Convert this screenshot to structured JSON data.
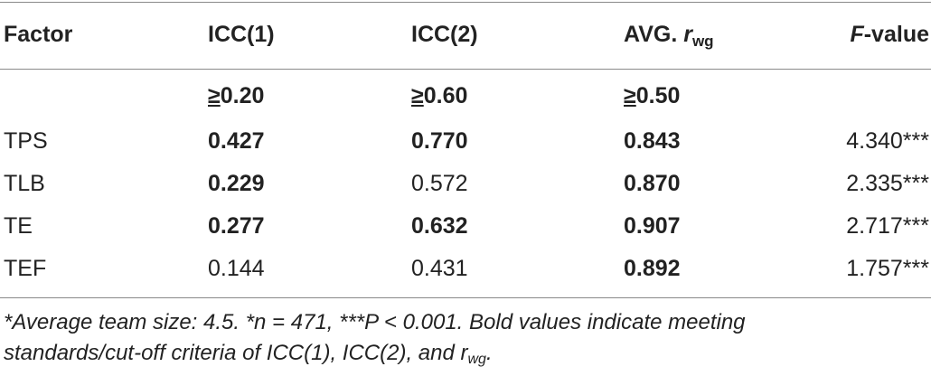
{
  "table": {
    "headers": {
      "factor": "Factor",
      "icc1": "ICC(1)",
      "icc2": "ICC(2)",
      "rwg_prefix": "AVG. ",
      "rwg_r": "r",
      "rwg_sub": "wg",
      "f_italic": "F",
      "f_rest": "-value"
    },
    "criteria": {
      "icc1_sym": "≥",
      "icc1_val": "0.20",
      "icc2_sym": "≥",
      "icc2_val": "0.60",
      "rwg_sym": "≥",
      "rwg_val": "0.50"
    },
    "rows": [
      {
        "factor": "TPS",
        "icc1": "0.427",
        "icc2": "0.770",
        "rwg": "0.843",
        "f": "4.340***",
        "icc1_bold": true,
        "icc2_bold": true,
        "rwg_bold": true
      },
      {
        "factor": "TLB",
        "icc1": "0.229",
        "icc2": "0.572",
        "rwg": "0.870",
        "f": "2.335***",
        "icc1_bold": true,
        "icc2_bold": false,
        "rwg_bold": true
      },
      {
        "factor": "TE",
        "icc1": "0.277",
        "icc2": "0.632",
        "rwg": "0.907",
        "f": "2.717***",
        "icc1_bold": true,
        "icc2_bold": true,
        "rwg_bold": true
      },
      {
        "factor": "TEF",
        "icc1": "0.144",
        "icc2": "0.431",
        "rwg": "0.892",
        "f": "1.757***",
        "icc1_bold": false,
        "icc2_bold": false,
        "rwg_bold": true
      }
    ]
  },
  "footnote": {
    "line1": "*Average team size: 4.5. *n = 471, ***P < 0.001. Bold values indicate meeting",
    "line2_main": "standards/cut-off criteria of ICC(1), ICC(2), and r",
    "line2_sub": "wg",
    "line2_end": "."
  }
}
